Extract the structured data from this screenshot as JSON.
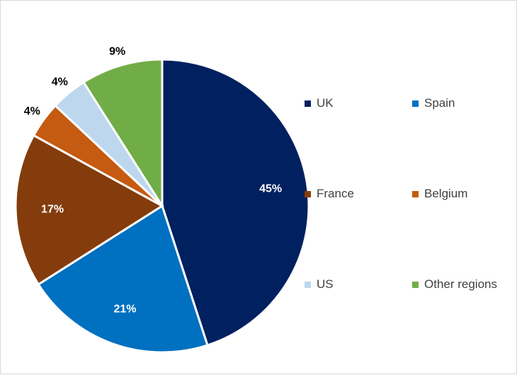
{
  "chart_data": {
    "type": "pie",
    "categories": [
      "UK",
      "Spain",
      "France",
      "Belgium",
      "US",
      "Other regions"
    ],
    "values": [
      45,
      21,
      17,
      4,
      4,
      9
    ],
    "labels": [
      "45%",
      "21%",
      "17%",
      "4%",
      "4%",
      "9%"
    ],
    "colors": [
      "#002060",
      "#0070C0",
      "#843C0C",
      "#C55A11",
      "#BDD7EE",
      "#70AD47"
    ],
    "label_colors": [
      "#ffffff",
      "#ffffff",
      "#ffffff",
      "#000000",
      "#000000",
      "#000000"
    ],
    "start_angle_deg": 0,
    "direction": "clockwise",
    "legend_position": "right",
    "title": ""
  }
}
